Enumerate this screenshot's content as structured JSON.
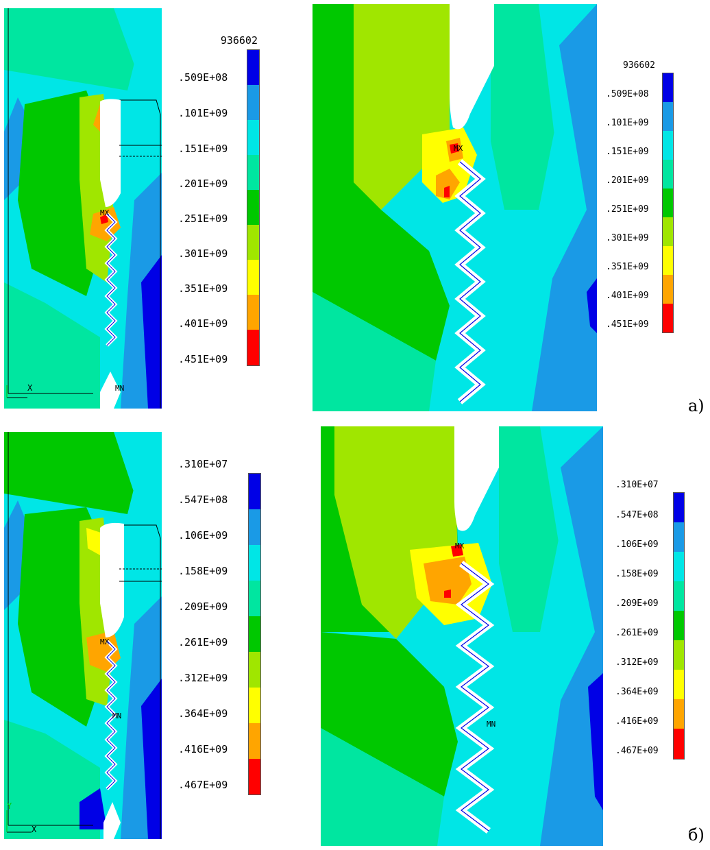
{
  "figures": [
    {
      "label": "а)",
      "legend_title": "936602",
      "legend_values": [
        ".509E+08",
        ".101E+09",
        ".151E+09",
        ".201E+09",
        ".251E+09",
        ".301E+09",
        ".351E+09",
        ".401E+09",
        ".451E+09"
      ],
      "max_label": "MX",
      "min_label": "MN",
      "axis_x": "X"
    },
    {
      "label": "б)",
      "legend_title": ".310E+07",
      "legend_values": [
        ".547E+08",
        ".106E+09",
        ".158E+09",
        ".209E+09",
        ".261E+09",
        ".312E+09",
        ".364E+09",
        ".416E+09",
        ".467E+09"
      ],
      "max_label": "MX",
      "min_label": "MN",
      "axis_x": "X",
      "axis_y": "Y"
    }
  ],
  "colors": [
    "#0000e6",
    "#1a9ae6",
    "#00e6e6",
    "#00e6a0",
    "#00c800",
    "#a0e600",
    "#ffff00",
    "#ffa500",
    "#ff0000"
  ],
  "background_color": "#00e6e6"
}
